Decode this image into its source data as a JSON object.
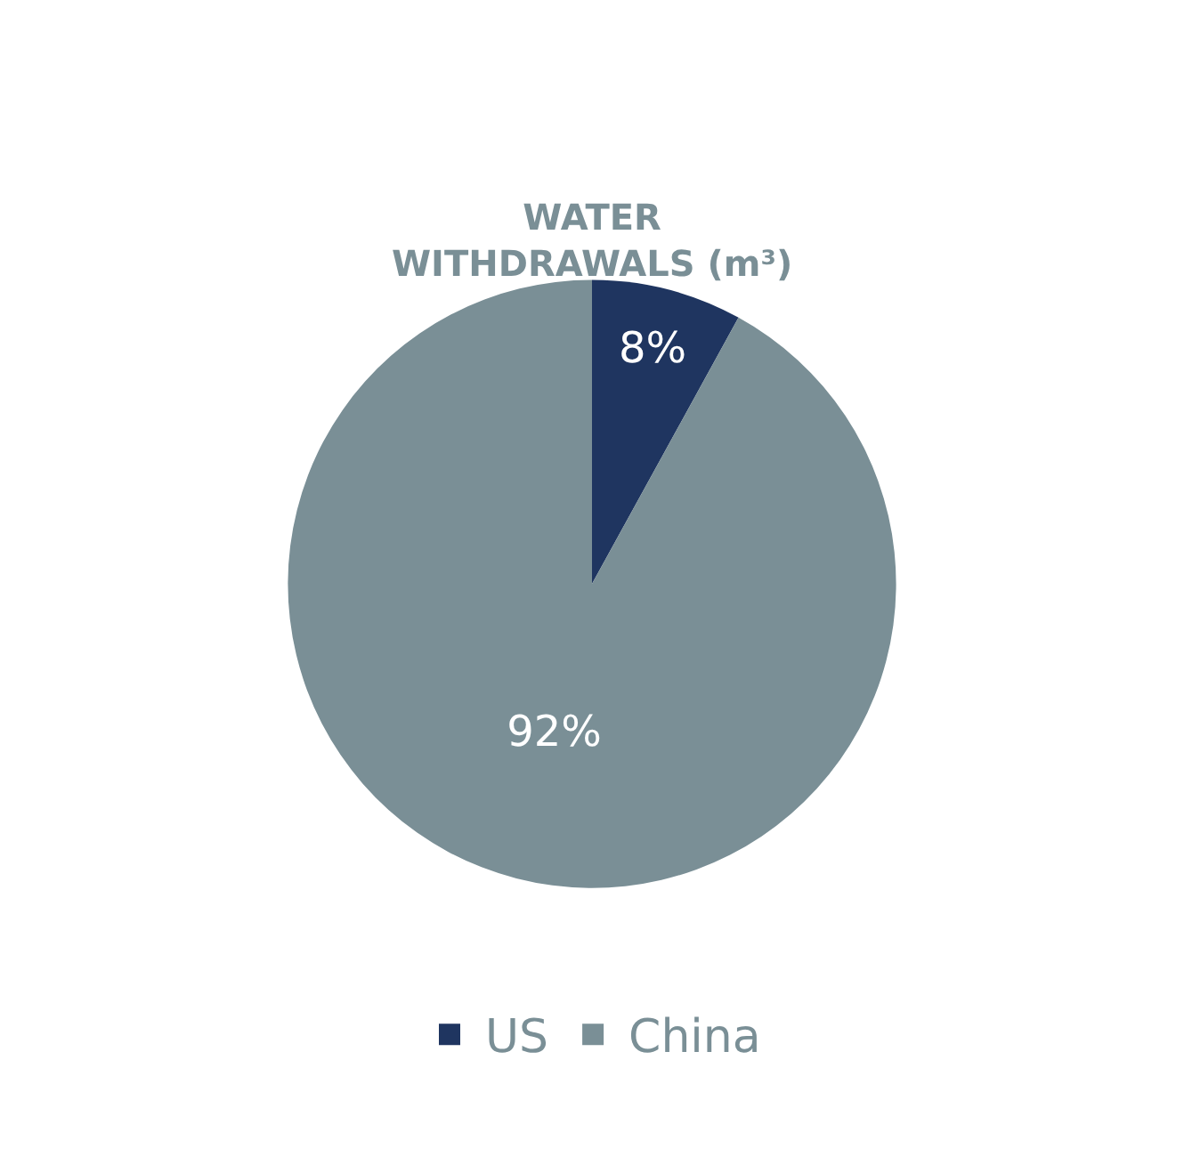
{
  "chart_data": {
    "type": "pie",
    "title": "WATER WITHDRAWALS (m³)",
    "categories": [
      "US",
      "China"
    ],
    "values": [
      8,
      92
    ],
    "value_labels": [
      "8%",
      "92%"
    ],
    "colors": [
      "#1f3560",
      "#7a8f96"
    ],
    "legend": "bottom"
  }
}
